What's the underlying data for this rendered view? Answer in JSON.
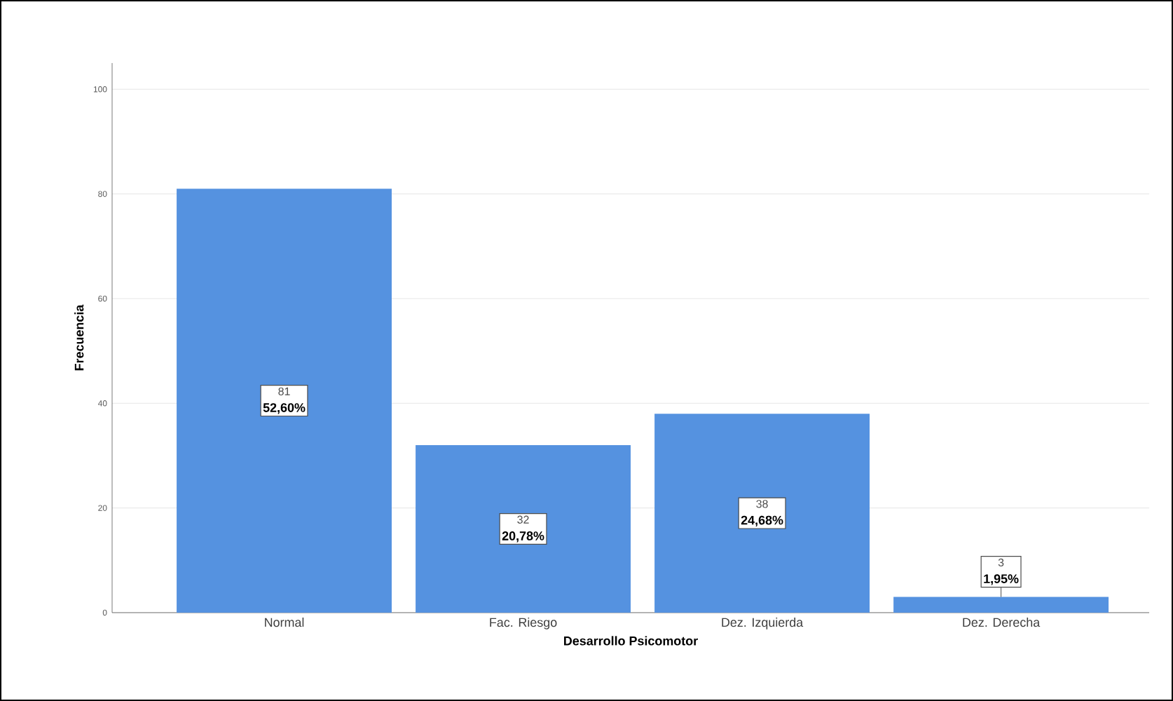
{
  "chart_data": {
    "type": "bar",
    "xlabel": "Desarrollo Psicomotor",
    "ylabel": "Frecuencia",
    "categories": [
      "Normal",
      "Fac. Riesgo",
      "Dez. Izquierda",
      "Dez. Derecha"
    ],
    "values": [
      81,
      32,
      38,
      3
    ],
    "color": "#5592e0",
    "ylim": [
      0,
      105
    ],
    "yticks": [
      0,
      20,
      40,
      60,
      80,
      100
    ],
    "grid": "y",
    "data_labels": true,
    "annotations": [
      {
        "text": "52,60%",
        "x": "Normal",
        "y": 40.5
      },
      {
        "text": "20,78%",
        "x": "Fac. Riesgo",
        "y": 16
      },
      {
        "text": "24,68%",
        "x": "Dez. Izquierda",
        "y": 19
      },
      {
        "text": "1,95%",
        "x": "Dez. Derecha",
        "y": 3
      }
    ]
  }
}
